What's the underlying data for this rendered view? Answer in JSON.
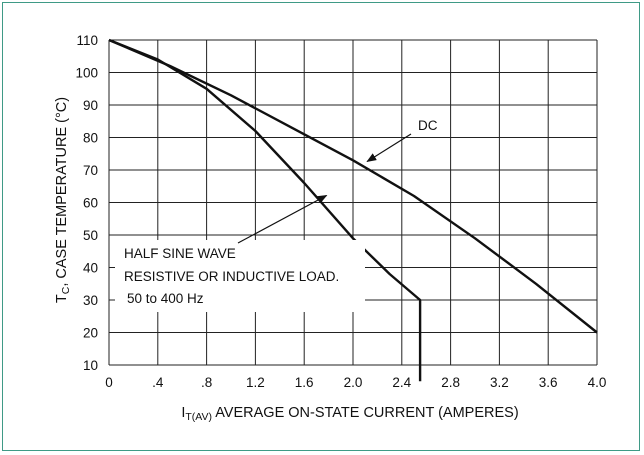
{
  "chart_data": {
    "type": "line",
    "title": "",
    "xlabel": {
      "main": "I",
      "subscript": "T(AV)",
      "rest": " AVERAGE ON-STATE CURRENT (AMPERES)"
    },
    "ylabel": {
      "main": "T",
      "subscript": "C",
      "rest": ", CASE TEMPERATURE (°C)"
    },
    "xlim": [
      0,
      4.0
    ],
    "ylim": [
      10,
      110
    ],
    "x_ticks": [
      {
        "value": 0,
        "label": "0"
      },
      {
        "value": 0.4,
        "label": ".4"
      },
      {
        "value": 0.8,
        "label": ".8"
      },
      {
        "value": 1.2,
        "label": "1.2"
      },
      {
        "value": 1.6,
        "label": "1.6"
      },
      {
        "value": 2.0,
        "label": "2.0"
      },
      {
        "value": 2.4,
        "label": "2.4"
      },
      {
        "value": 2.8,
        "label": "2.8"
      },
      {
        "value": 3.2,
        "label": "3.2"
      },
      {
        "value": 3.6,
        "label": "3.6"
      },
      {
        "value": 4.0,
        "label": "4.0"
      }
    ],
    "y_ticks": [
      {
        "value": 10,
        "label": "10"
      },
      {
        "value": 20,
        "label": "20"
      },
      {
        "value": 30,
        "label": "30"
      },
      {
        "value": 40,
        "label": "40"
      },
      {
        "value": 50,
        "label": "50"
      },
      {
        "value": 60,
        "label": "60"
      },
      {
        "value": 70,
        "label": "70"
      },
      {
        "value": 80,
        "label": "80"
      },
      {
        "value": 90,
        "label": "90"
      },
      {
        "value": 100,
        "label": "100"
      },
      {
        "value": 110,
        "label": "110"
      }
    ],
    "grid": true,
    "series": [
      {
        "key": "dc",
        "x": [
          0,
          0.5,
          1.0,
          1.5,
          2.0,
          2.5,
          3.0,
          3.5,
          4.0
        ],
        "y": [
          110,
          102,
          93,
          83,
          73,
          62,
          49,
          35,
          20
        ]
      },
      {
        "key": "half_sine",
        "x": [
          0,
          0.4,
          0.8,
          1.2,
          1.6,
          2.0,
          2.3,
          2.55,
          2.55
        ],
        "y": [
          110,
          104,
          95,
          82,
          66,
          49,
          38,
          30,
          5
        ]
      }
    ],
    "annotations": [
      {
        "key": "dc_label",
        "text": "DC",
        "target_x": 2.1,
        "target_y": 72
      },
      {
        "key": "half_sine_label",
        "lines": [
          "HALF SINE WAVE",
          "RESISTIVE OR INDUCTIVE LOAD.",
          "50 to 400 Hz"
        ],
        "target_x": 1.75,
        "target_y": 64
      }
    ]
  }
}
